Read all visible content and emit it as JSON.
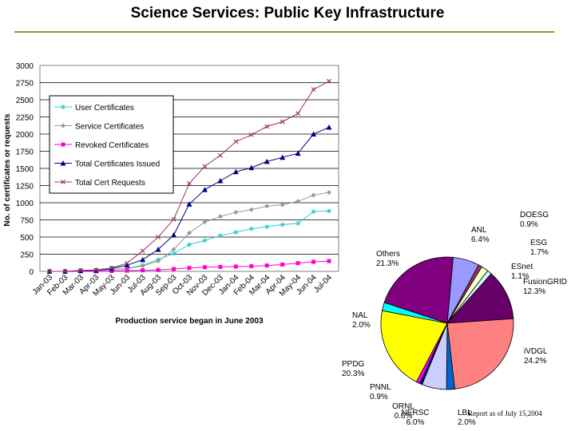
{
  "slide": {
    "title": "Science Services: Public Key Infrastructure",
    "footnote": "Report as of July 15,2004"
  },
  "chart_data": [
    {
      "type": "line",
      "title": "",
      "xlabel": "Production service began in June 2003",
      "ylabel": "No. of certificates or requests",
      "ylim": [
        0,
        3000
      ],
      "yticks": [
        "0",
        "250",
        "500",
        "750",
        "1000",
        "1250",
        "1500",
        "1750",
        "2000",
        "2250",
        "2500",
        "2750",
        "3000"
      ],
      "grid": true,
      "legend_position": "top-left",
      "categories": [
        "Jan-03",
        "Feb-03",
        "Mar-03",
        "Apr-03",
        "May-03",
        "Jun-03",
        "Jul-03",
        "Aug-03",
        "Sep-03",
        "Oct-03",
        "Nov-03",
        "Dec-03",
        "Jan-04",
        "Feb-04",
        "Mar-04",
        "Apr-04",
        "May-04",
        "Jun-04",
        "Jul-04"
      ],
      "series": [
        {
          "name": "User Certificates",
          "color": "#33cccc",
          "marker": "star",
          "values": [
            0,
            0,
            5,
            10,
            20,
            45,
            90,
            170,
            260,
            390,
            450,
            520,
            570,
            620,
            650,
            680,
            700,
            870,
            880
          ]
        },
        {
          "name": "Service Certificates",
          "color": "#999999",
          "marker": "diamond",
          "values": [
            0,
            0,
            5,
            10,
            20,
            40,
            80,
            150,
            320,
            560,
            720,
            800,
            860,
            900,
            950,
            970,
            1020,
            1110,
            1150
          ]
        },
        {
          "name": "Revoked Certificates",
          "color": "#ff00cc",
          "marker": "square",
          "values": [
            0,
            0,
            0,
            0,
            5,
            10,
            15,
            20,
            35,
            50,
            60,
            65,
            70,
            75,
            85,
            100,
            120,
            140,
            150
          ]
        },
        {
          "name": "Total Certificates Issued",
          "color": "#000080",
          "marker": "triangle",
          "values": [
            0,
            0,
            10,
            15,
            40,
            90,
            170,
            320,
            530,
            980,
            1190,
            1320,
            1450,
            1510,
            1600,
            1660,
            1720,
            2000,
            2100
          ]
        },
        {
          "name": "Total Cert Requests",
          "color": "#993366",
          "marker": "x",
          "values": [
            0,
            0,
            15,
            20,
            50,
            120,
            300,
            500,
            760,
            1280,
            1530,
            1690,
            1890,
            1990,
            2110,
            2180,
            2300,
            2650,
            2770
          ]
        }
      ]
    },
    {
      "type": "pie",
      "slices": [
        {
          "label": "ANL",
          "value": 6.4,
          "display": "6.4%",
          "color": "#9999ff"
        },
        {
          "label": "DOESG",
          "value": 0.9,
          "display": "0.9%",
          "color": "#993366"
        },
        {
          "label": "ESG",
          "value": 1.7,
          "display": "1.7%",
          "color": "#ffffcc"
        },
        {
          "label": "ESnet",
          "value": 1.1,
          "display": "1.1%",
          "color": "#ccffff"
        },
        {
          "label": "FusionGRID",
          "value": 12.3,
          "display": "12.3%",
          "color": "#660066"
        },
        {
          "label": "iVDGL",
          "value": 24.2,
          "display": "24.2%",
          "color": "#ff8080"
        },
        {
          "label": "LBL",
          "value": 2.0,
          "display": "2.0%",
          "color": "#0066cc"
        },
        {
          "label": "NERSC",
          "value": 6.0,
          "display": "6.0%",
          "color": "#ccccff"
        },
        {
          "label": "ORNL",
          "value": 0.6,
          "display": "0.6%",
          "color": "#000080"
        },
        {
          "label": "PNNL",
          "value": 0.9,
          "display": "0.9%",
          "color": "#ff00ff"
        },
        {
          "label": "PPDG",
          "value": 20.3,
          "display": "20.3%",
          "color": "#ffff00"
        },
        {
          "label": "NAL",
          "value": 2.0,
          "display": "2.0%",
          "color": "#00ffff"
        },
        {
          "label": "Others",
          "value": 21.3,
          "display": "21.3%",
          "color": "#800080"
        }
      ]
    }
  ]
}
